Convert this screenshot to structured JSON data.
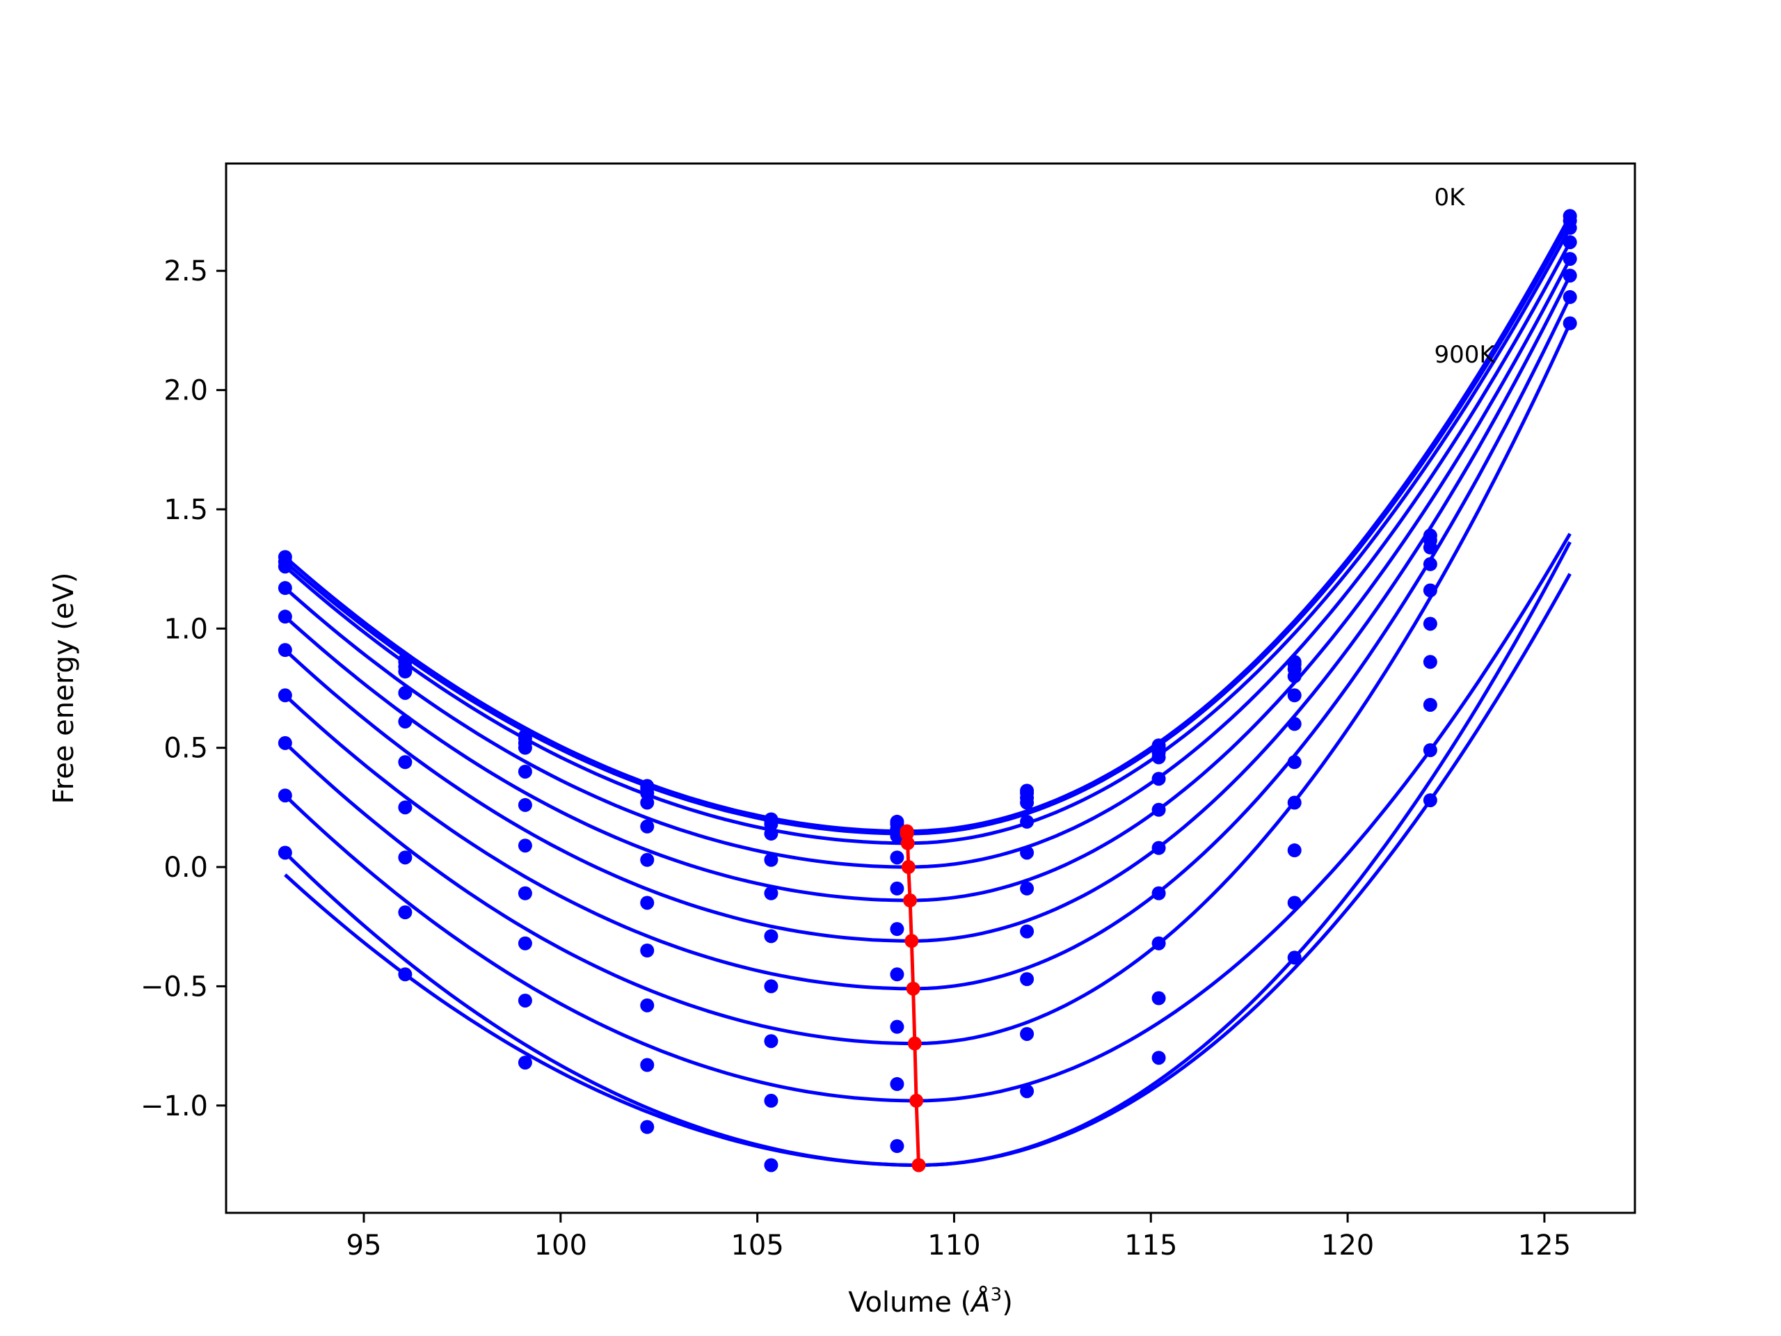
{
  "chart_data": {
    "type": "scatter",
    "xlabel": "Volume (Å³)",
    "xlabel_parts": {
      "prefix": "Volume (",
      "symbol": "Å",
      "exponent": "3",
      "suffix": ")"
    },
    "ylabel": "Free energy (eV)",
    "xlim": [
      91.5,
      127.3
    ],
    "ylim": [
      -1.45,
      2.95
    ],
    "xticks": [
      95,
      100,
      105,
      110,
      115,
      120,
      125
    ],
    "xtick_labels": [
      "95",
      "100",
      "105",
      "110",
      "115",
      "120",
      "125"
    ],
    "yticks": [
      -1.0,
      -0.5,
      0.0,
      0.5,
      1.0,
      1.5,
      2.0,
      2.5
    ],
    "ytick_labels": [
      "−1.0",
      "−0.5",
      "0.0",
      "0.5",
      "1.0",
      "1.5",
      "2.0",
      "2.5"
    ],
    "grid": false,
    "volumes": [
      93.0,
      96.05,
      99.1,
      102.2,
      105.35,
      108.55,
      111.85,
      115.2,
      118.65,
      122.1,
      125.65
    ],
    "colors": {
      "curves": "#0000ff",
      "points": "#0000ff",
      "minimum_line": "#ff0000"
    },
    "series": [
      {
        "label": "0K",
        "points": [
          1.3,
          0.87,
          0.55,
          0.34,
          0.2,
          0.19,
          0.32,
          0.51,
          0.86,
          1.39,
          2.73
        ],
        "fit_min_volume": 108.8,
        "fit_min_energy": 0.15
      },
      {
        "points": [
          1.28,
          0.86,
          0.54,
          0.33,
          0.19,
          0.18,
          0.31,
          0.5,
          0.85,
          1.37,
          2.71
        ],
        "fit_min_volume": 108.8,
        "fit_min_energy": 0.14
      },
      {
        "points": [
          1.26,
          0.84,
          0.52,
          0.31,
          0.18,
          0.16,
          0.29,
          0.48,
          0.83,
          1.34,
          2.68
        ],
        "fit_min_volume": 108.82,
        "fit_min_energy": 0.1
      },
      {
        "points": [
          1.17,
          0.82,
          0.5,
          0.27,
          0.14,
          0.13,
          0.27,
          0.46,
          0.8,
          1.27,
          2.62
        ],
        "fit_min_volume": 108.84,
        "fit_min_energy": 0.0
      },
      {
        "points": [
          1.05,
          0.73,
          0.4,
          0.17,
          0.03,
          0.04,
          0.19,
          0.37,
          0.72,
          1.16,
          2.55
        ],
        "fit_min_volume": 108.88,
        "fit_min_energy": -0.14
      },
      {
        "points": [
          0.91,
          0.61,
          0.26,
          0.03,
          -0.11,
          -0.09,
          0.06,
          0.24,
          0.6,
          1.02,
          2.48
        ],
        "fit_min_volume": 108.92,
        "fit_min_energy": -0.31
      },
      {
        "points": [
          0.72,
          0.44,
          0.09,
          -0.15,
          -0.29,
          -0.26,
          -0.09,
          0.08,
          0.44,
          0.86,
          2.39
        ],
        "fit_min_volume": 108.96,
        "fit_min_energy": -0.51
      },
      {
        "points": [
          0.52,
          0.25,
          -0.11,
          -0.35,
          -0.5,
          -0.45,
          -0.27,
          -0.11,
          0.27,
          0.68,
          2.28
        ],
        "fit_min_volume": 109.0,
        "fit_min_energy": -0.74
      },
      {
        "points": [
          0.3,
          0.04,
          -0.32,
          -0.58,
          -0.73,
          -0.67,
          -0.47,
          -0.32,
          0.07,
          0.49,
          null
        ],
        "fit_min_volume": 109.04,
        "fit_min_energy": -0.98
      },
      {
        "label": "900K",
        "points": [
          0.06,
          -0.19,
          -0.56,
          -0.83,
          -0.98,
          -0.91,
          -0.7,
          -0.55,
          -0.15,
          0.28,
          null
        ],
        "fit_min_volume": 109.1,
        "fit_min_energy": -1.25
      },
      {
        "points": [
          null,
          -0.45,
          -0.82,
          -1.09,
          -1.25,
          -1.17,
          -0.94,
          -0.8,
          -0.38,
          null,
          null
        ],
        "fit_min_volume": 109.1,
        "fit_min_energy": -1.25
      }
    ],
    "annotations": [
      {
        "text": "0K",
        "x": 122.2,
        "y": 2.81
      },
      {
        "text": "900K",
        "x": 122.2,
        "y": 2.15
      }
    ]
  }
}
